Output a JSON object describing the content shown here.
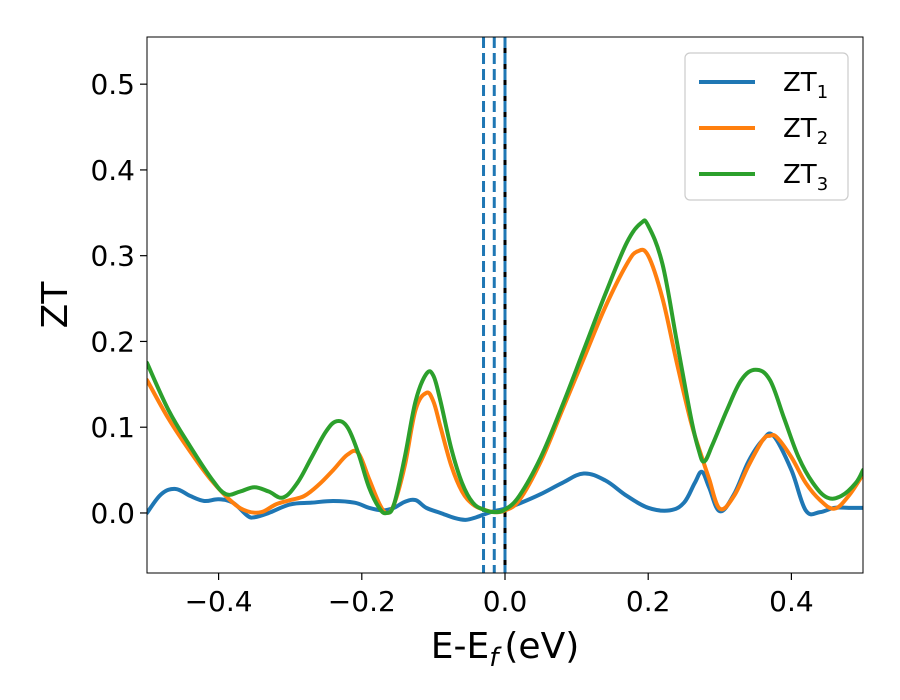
{
  "chart_data": {
    "type": "line",
    "title": "",
    "xlabel": "E-E",
    "xlabel_sub": "f",
    "xlabel_unit": "(eV)",
    "ylabel": "ZT",
    "xlim": [
      -0.5,
      0.5
    ],
    "ylim": [
      -0.07,
      0.555
    ],
    "xticks": [
      -0.4,
      -0.2,
      0.0,
      0.2,
      0.4
    ],
    "xtick_labels": [
      "−0.4",
      "−0.2",
      "0.0",
      "0.2",
      "0.4"
    ],
    "yticks": [
      0.0,
      0.1,
      0.2,
      0.3,
      0.4,
      0.5
    ],
    "ytick_labels": [
      "0.0",
      "0.1",
      "0.2",
      "0.3",
      "0.4",
      "0.5"
    ],
    "grid": false,
    "legend_position": "top-right",
    "vertical_lines": [
      {
        "x": -0.03,
        "style": "dashed",
        "color": "#1f77b4"
      },
      {
        "x": -0.015,
        "style": "dashed",
        "color": "#1f77b4"
      },
      {
        "x": 0.0,
        "style": "solid",
        "color": "#000000"
      },
      {
        "x": 0.0,
        "style": "dashed",
        "color": "#1f77b4"
      }
    ],
    "series": [
      {
        "name": "ZT",
        "name_sub": "1",
        "color": "#1f77b4",
        "x": [
          -0.5,
          -0.48,
          -0.46,
          -0.44,
          -0.42,
          -0.4,
          -0.38,
          -0.36,
          -0.35,
          -0.33,
          -0.3,
          -0.27,
          -0.24,
          -0.21,
          -0.19,
          -0.17,
          -0.155,
          -0.14,
          -0.125,
          -0.11,
          -0.09,
          -0.07,
          -0.055,
          -0.04,
          -0.02,
          0.0,
          0.02,
          0.05,
          0.08,
          0.11,
          0.14,
          0.17,
          0.2,
          0.23,
          0.25,
          0.265,
          0.275,
          0.285,
          0.3,
          0.32,
          0.34,
          0.36,
          0.375,
          0.4,
          0.42,
          0.44,
          0.46,
          0.48,
          0.5
        ],
        "y": [
          0.0,
          0.022,
          0.028,
          0.02,
          0.014,
          0.016,
          0.012,
          -0.003,
          -0.005,
          0.0,
          0.01,
          0.012,
          0.014,
          0.012,
          0.006,
          0.003,
          0.006,
          0.013,
          0.015,
          0.006,
          0.0,
          -0.006,
          -0.008,
          -0.005,
          0.001,
          0.005,
          0.011,
          0.022,
          0.035,
          0.046,
          0.038,
          0.02,
          0.006,
          0.003,
          0.012,
          0.035,
          0.048,
          0.03,
          0.002,
          0.022,
          0.06,
          0.085,
          0.09,
          0.05,
          0.003,
          0.001,
          0.006,
          0.006,
          0.006
        ]
      },
      {
        "name": "ZT",
        "name_sub": "2",
        "color": "#ff7f0e",
        "x": [
          -0.5,
          -0.47,
          -0.44,
          -0.41,
          -0.38,
          -0.36,
          -0.34,
          -0.32,
          -0.3,
          -0.28,
          -0.26,
          -0.24,
          -0.22,
          -0.205,
          -0.19,
          -0.175,
          -0.165,
          -0.155,
          -0.14,
          -0.125,
          -0.11,
          -0.1,
          -0.09,
          -0.075,
          -0.06,
          -0.045,
          -0.03,
          -0.015,
          0.0,
          0.02,
          0.05,
          0.08,
          0.11,
          0.14,
          0.17,
          0.185,
          0.2,
          0.22,
          0.24,
          0.26,
          0.275,
          0.285,
          0.3,
          0.32,
          0.34,
          0.36,
          0.37,
          0.38,
          0.4,
          0.42,
          0.44,
          0.46,
          0.48,
          0.5
        ],
        "y": [
          0.155,
          0.11,
          0.072,
          0.038,
          0.012,
          0.002,
          0.001,
          0.01,
          0.015,
          0.02,
          0.033,
          0.05,
          0.068,
          0.07,
          0.04,
          0.01,
          0.0,
          0.01,
          0.055,
          0.12,
          0.14,
          0.13,
          0.1,
          0.055,
          0.025,
          0.01,
          0.004,
          0.001,
          0.003,
          0.015,
          0.06,
          0.12,
          0.18,
          0.24,
          0.29,
          0.305,
          0.3,
          0.25,
          0.175,
          0.105,
          0.065,
          0.04,
          0.005,
          0.02,
          0.055,
          0.085,
          0.09,
          0.088,
          0.065,
          0.035,
          0.015,
          0.005,
          0.02,
          0.045
        ]
      },
      {
        "name": "ZT",
        "name_sub": "3",
        "color": "#2ca02c",
        "x": [
          -0.5,
          -0.47,
          -0.44,
          -0.41,
          -0.39,
          -0.37,
          -0.35,
          -0.33,
          -0.31,
          -0.29,
          -0.27,
          -0.25,
          -0.235,
          -0.22,
          -0.205,
          -0.19,
          -0.175,
          -0.165,
          -0.155,
          -0.14,
          -0.125,
          -0.11,
          -0.1,
          -0.09,
          -0.075,
          -0.06,
          -0.045,
          -0.03,
          -0.015,
          0.0,
          0.02,
          0.05,
          0.08,
          0.11,
          0.14,
          0.17,
          0.19,
          0.2,
          0.22,
          0.24,
          0.26,
          0.27,
          0.278,
          0.29,
          0.31,
          0.33,
          0.35,
          0.37,
          0.39,
          0.41,
          0.43,
          0.45,
          0.47,
          0.49,
          0.5
        ],
        "y": [
          0.175,
          0.12,
          0.078,
          0.04,
          0.022,
          0.025,
          0.03,
          0.025,
          0.018,
          0.035,
          0.065,
          0.095,
          0.107,
          0.1,
          0.07,
          0.03,
          0.005,
          0.0,
          0.01,
          0.065,
          0.13,
          0.162,
          0.16,
          0.13,
          0.075,
          0.035,
          0.012,
          0.004,
          0.001,
          0.004,
          0.02,
          0.065,
          0.125,
          0.19,
          0.255,
          0.315,
          0.338,
          0.335,
          0.29,
          0.2,
          0.11,
          0.075,
          0.06,
          0.08,
          0.12,
          0.155,
          0.167,
          0.155,
          0.11,
          0.065,
          0.035,
          0.018,
          0.02,
          0.035,
          0.05
        ]
      }
    ]
  }
}
